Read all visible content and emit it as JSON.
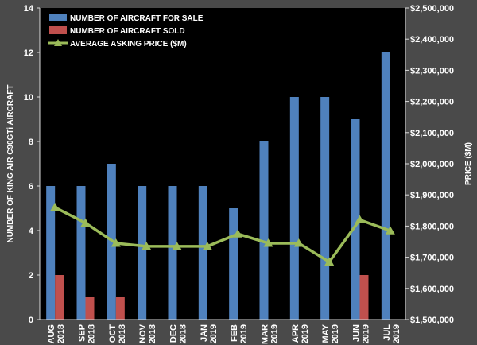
{
  "chart_data": {
    "type": "bar",
    "categories": [
      [
        "AUG",
        "2018"
      ],
      [
        "SEP",
        "2018"
      ],
      [
        "OCT",
        "2018"
      ],
      [
        "NOV",
        "2018"
      ],
      [
        "DEC",
        "2018"
      ],
      [
        "JAN",
        "2019"
      ],
      [
        "FEB",
        "2019"
      ],
      [
        "MAR",
        "2019"
      ],
      [
        "APR",
        "2019"
      ],
      [
        "MAY",
        "2019"
      ],
      [
        "JUN",
        "2019"
      ],
      [
        "JUL",
        "2019"
      ]
    ],
    "series": [
      {
        "name": "NUMBER OF AIRCRAFT FOR SALE",
        "kind": "bar",
        "axis": "left",
        "color": "#4f81bd",
        "values": [
          6,
          6,
          7,
          6,
          6,
          6,
          5,
          8,
          10,
          10,
          9,
          12
        ]
      },
      {
        "name": "NUMBER OF AIRCRAFT SOLD",
        "kind": "bar",
        "axis": "left",
        "color": "#c0504d",
        "values": [
          2,
          1,
          1,
          0,
          0,
          0,
          0,
          0,
          0,
          0,
          2,
          0
        ]
      },
      {
        "name": "AVERAGE ASKING PRICE ($M)",
        "kind": "line",
        "axis": "right",
        "color": "#9bbb59",
        "values": [
          1860000,
          1810000,
          1745000,
          1735000,
          1735000,
          1735000,
          1775000,
          1745000,
          1745000,
          1685000,
          1820000,
          1785000
        ]
      }
    ],
    "ylabel": "NUMBER OF KING AIR C90GTi AIRCRAFT",
    "y2label": "PRICE ($M)",
    "ylim": [
      0,
      14
    ],
    "yticks": [
      0,
      2,
      4,
      6,
      8,
      10,
      12,
      14
    ],
    "y2lim": [
      1500000,
      2500000
    ],
    "y2ticks": [
      {
        "value": 1500000,
        "label": "$1,500,000"
      },
      {
        "value": 1600000,
        "label": "$1,600,000"
      },
      {
        "value": 1700000,
        "label": "$1,700,000"
      },
      {
        "value": 1800000,
        "label": "$1,800,000"
      },
      {
        "value": 1900000,
        "label": "$1,900,000"
      },
      {
        "value": 2000000,
        "label": "$2,000,000"
      },
      {
        "value": 2100000,
        "label": "$2,100,000"
      },
      {
        "value": 2200000,
        "label": "$2,200,000"
      },
      {
        "value": 2300000,
        "label": "$2,300,000"
      },
      {
        "value": 2400000,
        "label": "$2,400,000"
      },
      {
        "value": 2500000,
        "label": "$2,500,000"
      }
    ],
    "legend_position": "top-left",
    "grid": false
  }
}
